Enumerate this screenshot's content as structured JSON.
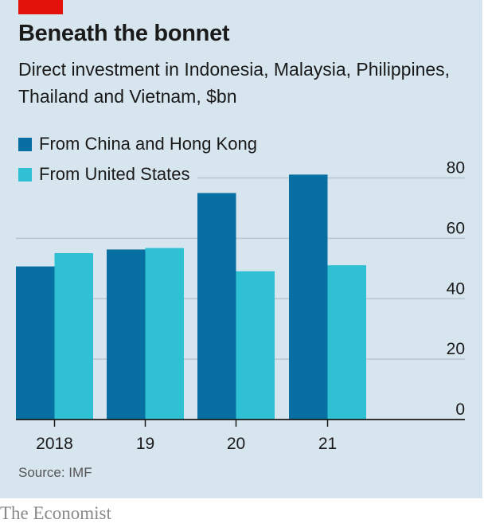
{
  "header": {
    "title": "Beneath the bonnet",
    "subtitle": "Direct investment in Indonesia, Malaysia, Philippines, Thailand and Vietnam, $bn"
  },
  "footer": {
    "source": "Source: IMF",
    "logo": "The Economist"
  },
  "colors": {
    "brand_red": "#e3120b",
    "china_hk": "#076fa1",
    "united_states": "#2fc1d3",
    "background": "#d7e5ef",
    "gridline": "#b7c6cf",
    "axis": "#1a1a1a"
  },
  "chart_data": {
    "type": "bar",
    "title": "Beneath the bonnet",
    "subtitle": "Direct investment in Indonesia, Malaysia, Philippines, Thailand and Vietnam, $bn",
    "categories": [
      "2018",
      "19",
      "20",
      "21"
    ],
    "series": [
      {
        "name": "From China and Hong Kong",
        "color": "#076fa1",
        "values": [
          50.7,
          56.3,
          75.0,
          81.1
        ]
      },
      {
        "name": "From United States",
        "color": "#2fc1d3",
        "values": [
          55.1,
          56.8,
          49.1,
          51.1
        ]
      }
    ],
    "xlabel": "",
    "ylabel": "",
    "ylim": [
      0,
      80
    ],
    "yticks": [
      0,
      20,
      40,
      60,
      80
    ],
    "ytick_labels": [
      "0",
      "20",
      "40",
      "60",
      "80"
    ],
    "y_axis_side": "right",
    "grid": true,
    "legend_position": "top-left",
    "source": "Source: IMF"
  }
}
